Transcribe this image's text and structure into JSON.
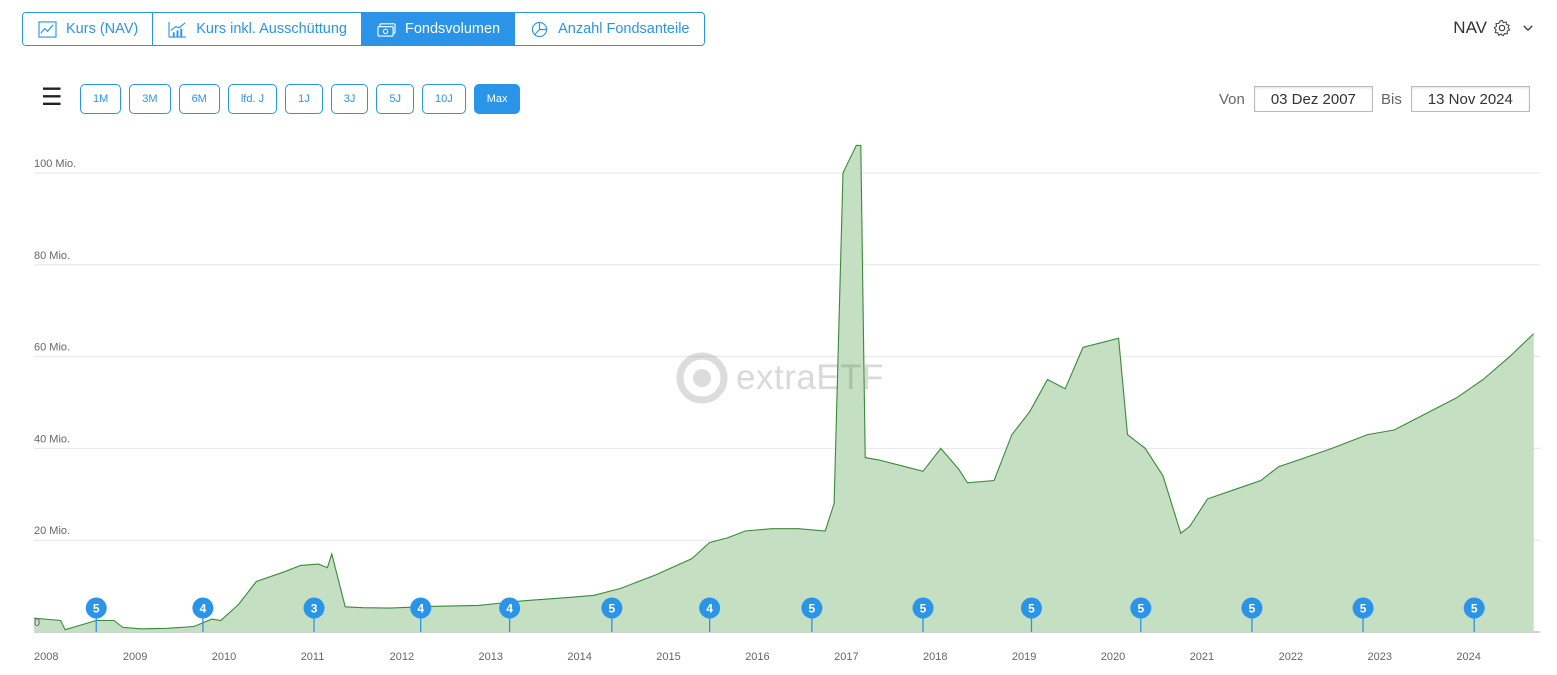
{
  "tabs": [
    {
      "label": "Kurs (NAV)",
      "icon": "line-chart-icon",
      "active": false
    },
    {
      "label": "Kurs inkl. Ausschüttung",
      "icon": "bar-line-chart-icon",
      "active": false
    },
    {
      "label": "Fondsvolumen",
      "icon": "money-bill-icon",
      "active": true
    },
    {
      "label": "Anzahl Fondsanteile",
      "icon": "pie-chart-icon",
      "active": false
    }
  ],
  "nav_select": {
    "label": "NAV",
    "icon": "gear-icon",
    "chevron": "chevron-down-icon"
  },
  "toolbar": {
    "menu_icon": "hamburger-menu-icon",
    "ranges": [
      "1M",
      "3M",
      "6M",
      "lfd. J",
      "1J",
      "3J",
      "5J",
      "10J",
      "Max"
    ],
    "active_range": "Max"
  },
  "date_range": {
    "from_label": "Von",
    "from_value": "03 Dez 2007",
    "to_label": "Bis",
    "to_value": "13 Nov 2024"
  },
  "watermark": {
    "text": "extraETF",
    "icon": "extraetf-logo-icon"
  },
  "colors": {
    "accent": "#2a95e8",
    "line": "#3a8a3a",
    "fill": "#c5dfc2",
    "grid": "#e6e6e6"
  },
  "chart_data": {
    "type": "area",
    "title": "",
    "xlabel": "",
    "ylabel": "",
    "ylim": [
      0,
      105
    ],
    "y_ticks": [
      {
        "value": 0,
        "label": "0"
      },
      {
        "value": 20,
        "label": "20 Mio."
      },
      {
        "value": 40,
        "label": "40 Mio."
      },
      {
        "value": 60,
        "label": "60 Mio."
      },
      {
        "value": 80,
        "label": "80 Mio."
      },
      {
        "value": 100,
        "label": "100 Mio."
      }
    ],
    "x_ticks": [
      "2008",
      "2009",
      "2010",
      "2011",
      "2012",
      "2013",
      "2014",
      "2015",
      "2016",
      "2017",
      "2018",
      "2019",
      "2020",
      "2021",
      "2022",
      "2023",
      "2024"
    ],
    "grid": true,
    "legend": "none",
    "series": [
      {
        "values_in": "Mio.",
        "x": [
          2008.0,
          2008.3,
          2008.35,
          2008.7,
          2008.9,
          2009.0,
          2009.2,
          2009.5,
          2009.8,
          2010.0,
          2010.1,
          2010.3,
          2010.5,
          2010.8,
          2011.0,
          2011.2,
          2011.3,
          2011.35,
          2011.5,
          2011.7,
          2012.0,
          2012.5,
          2013.0,
          2013.5,
          2014.0,
          2014.3,
          2014.6,
          2015.0,
          2015.4,
          2015.6,
          2015.8,
          2016.0,
          2016.3,
          2016.6,
          2016.9,
          2017.0,
          2017.1,
          2017.15,
          2017.25,
          2017.3,
          2017.35,
          2017.5,
          2017.8,
          2018.0,
          2018.2,
          2018.4,
          2018.5,
          2018.8,
          2019.0,
          2019.2,
          2019.4,
          2019.6,
          2019.8,
          2020.0,
          2020.2,
          2020.3,
          2020.5,
          2020.7,
          2020.9,
          2021.0,
          2021.2,
          2021.5,
          2021.8,
          2022.0,
          2022.3,
          2022.6,
          2023.0,
          2023.3,
          2023.6,
          2024.0,
          2024.3,
          2024.6,
          2024.87
        ],
        "values": [
          3.0,
          2.5,
          0.5,
          2.5,
          2.5,
          1.0,
          0.7,
          0.8,
          1.2,
          2.8,
          2.5,
          6.0,
          11.0,
          13.0,
          14.5,
          14.8,
          14.0,
          17.0,
          5.5,
          5.3,
          5.2,
          5.6,
          5.8,
          6.8,
          7.5,
          8.0,
          9.5,
          12.5,
          16.0,
          19.5,
          20.5,
          22.0,
          22.5,
          22.5,
          22.0,
          28.0,
          100.0,
          102.0,
          106.0,
          106.0,
          38.0,
          37.5,
          36.0,
          35.0,
          40.0,
          35.5,
          32.5,
          33.0,
          43.0,
          48.0,
          55.0,
          53.0,
          62.0,
          63.0,
          64.0,
          43.0,
          40.0,
          34.0,
          21.5,
          23.0,
          29.0,
          31.0,
          33.0,
          36.0,
          38.0,
          40.0,
          43.0,
          44.0,
          47.0,
          51.0,
          55.0,
          60.0,
          65.0
        ]
      }
    ],
    "events": [
      {
        "x": 2008.7,
        "label": "5"
      },
      {
        "x": 2009.9,
        "label": "4"
      },
      {
        "x": 2011.15,
        "label": "3"
      },
      {
        "x": 2012.35,
        "label": "4"
      },
      {
        "x": 2013.35,
        "label": "4"
      },
      {
        "x": 2014.5,
        "label": "5"
      },
      {
        "x": 2015.6,
        "label": "4"
      },
      {
        "x": 2016.75,
        "label": "5"
      },
      {
        "x": 2018.0,
        "label": "5"
      },
      {
        "x": 2019.22,
        "label": "5"
      },
      {
        "x": 2020.45,
        "label": "5"
      },
      {
        "x": 2021.7,
        "label": "5"
      },
      {
        "x": 2022.95,
        "label": "5"
      },
      {
        "x": 2024.2,
        "label": "5"
      }
    ]
  }
}
